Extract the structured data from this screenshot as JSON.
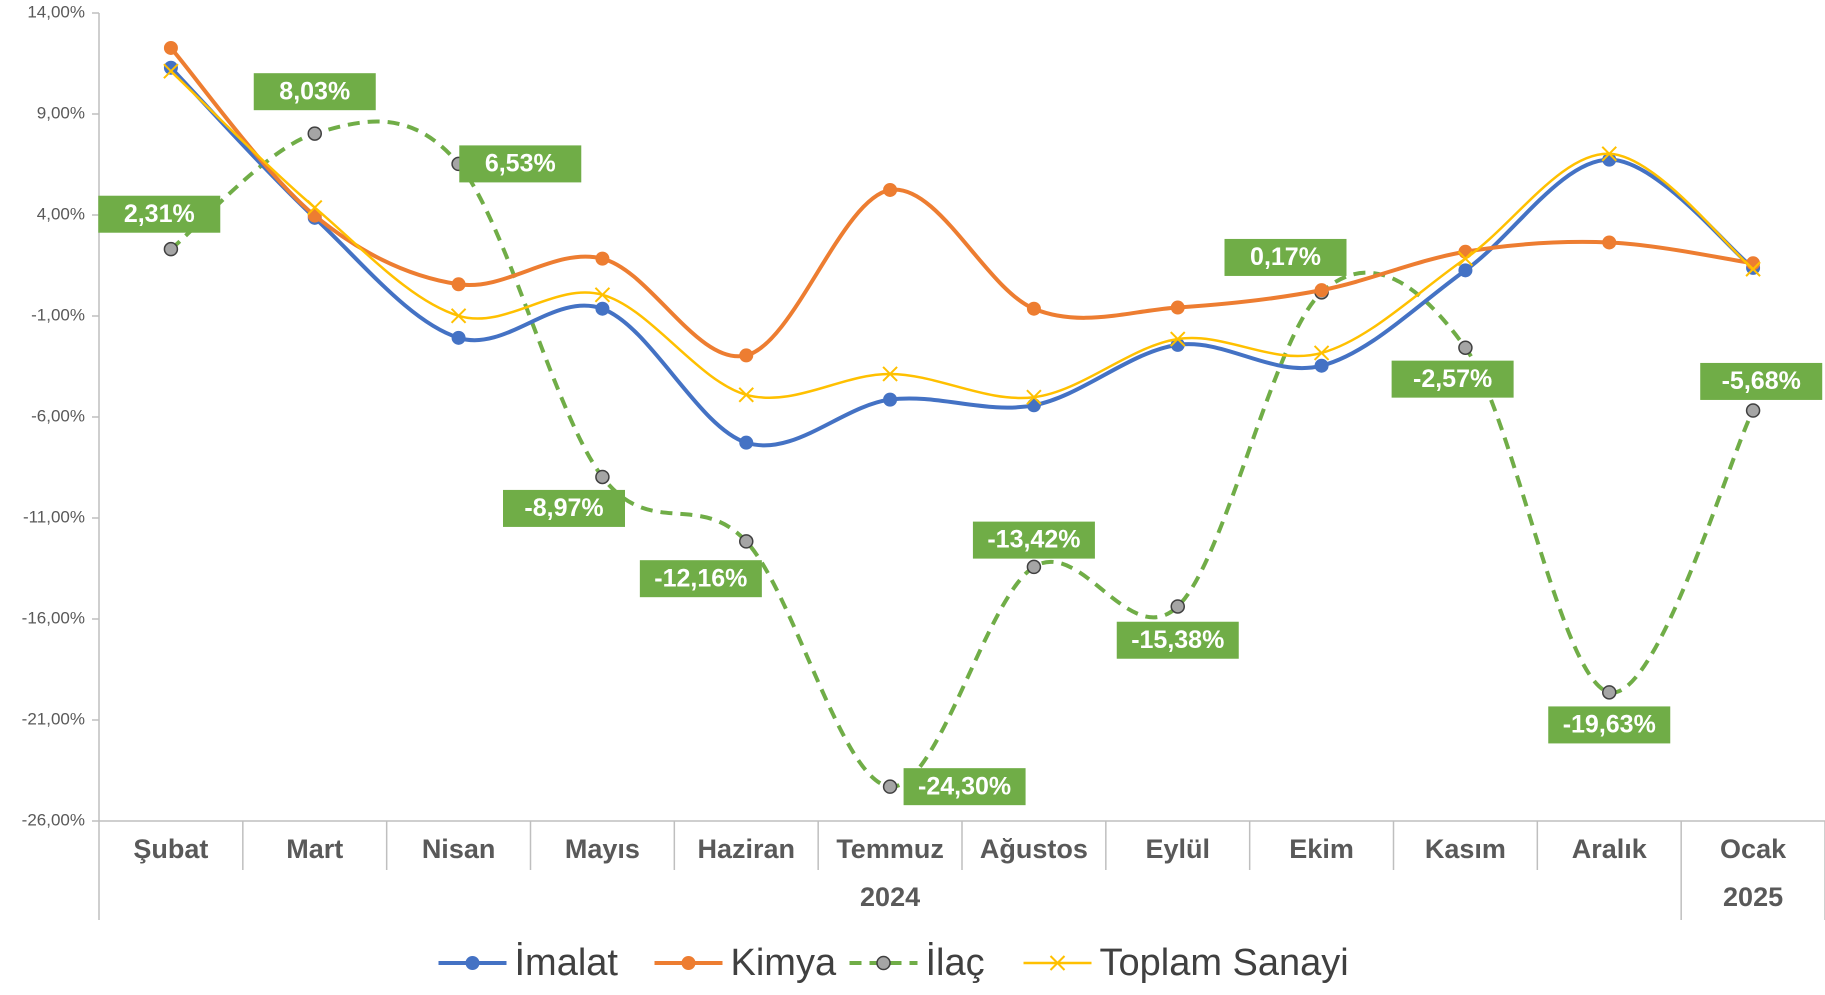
{
  "chart_data": {
    "type": "line",
    "categories": [
      "Şubat",
      "Mart",
      "Nisan",
      "Mayıs",
      "Haziran",
      "Temmuz",
      "Ağustos",
      "Eylül",
      "Ekim",
      "Kasım",
      "Aralık",
      "Ocak"
    ],
    "category_years": [
      "2024",
      "2024",
      "2024",
      "2024",
      "2024",
      "2024",
      "2024",
      "2024",
      "2024",
      "2024",
      "2024",
      "2025"
    ],
    "ylim": [
      -26,
      14
    ],
    "yticks": [
      {
        "value": -26,
        "label": "-26,00%"
      },
      {
        "value": -21,
        "label": "-21,00%"
      },
      {
        "value": -16,
        "label": "-16,00%"
      },
      {
        "value": -11,
        "label": "-11,00%"
      },
      {
        "value": -6,
        "label": "-6,00%"
      },
      {
        "value": -1,
        "label": "-1,00%"
      },
      {
        "value": 4,
        "label": "4,00%"
      },
      {
        "value": 9,
        "label": "9,00%"
      },
      {
        "value": 14,
        "label": "14,00%"
      }
    ],
    "grid": false,
    "legend": "bottom",
    "series": [
      {
        "name": "İmalat",
        "color": "#4472c4",
        "marker": "circle",
        "dashed": false,
        "values": [
          11.29,
          3.86,
          -2.08,
          -0.64,
          -7.27,
          -5.14,
          -5.42,
          -2.43,
          -3.46,
          1.26,
          6.74,
          1.38
        ]
      },
      {
        "name": "Kimya",
        "color": "#ed7d31",
        "marker": "circle",
        "dashed": false,
        "values": [
          12.27,
          3.97,
          0.57,
          1.84,
          -2.95,
          5.24,
          -0.64,
          -0.58,
          0.28,
          2.18,
          2.64,
          1.61
        ]
      },
      {
        "name": "İlaç",
        "color": "#70ad47",
        "marker": "circle",
        "marker_color": "#a5a5a5",
        "dashed": true,
        "values": [
          2.31,
          8.03,
          6.53,
          -8.97,
          -12.16,
          -24.3,
          -13.42,
          -15.38,
          0.17,
          -2.57,
          -19.63,
          -5.68
        ],
        "value_labels": [
          "2,31%",
          "8,03%",
          "6,53%",
          "-8,97%",
          "-12,16%",
          "-24,30%",
          "-13,42%",
          "-15,38%",
          "0,17%",
          "-2,57%",
          "-19,63%",
          "-5,68%"
        ]
      },
      {
        "name": "Toplam Sanayi",
        "color": "#ffc000",
        "marker": "x",
        "dashed": false,
        "values": [
          11.12,
          4.37,
          -0.99,
          0.05,
          -4.9,
          -3.87,
          -5.02,
          -2.14,
          -2.83,
          1.84,
          7.03,
          1.32
        ]
      }
    ]
  }
}
